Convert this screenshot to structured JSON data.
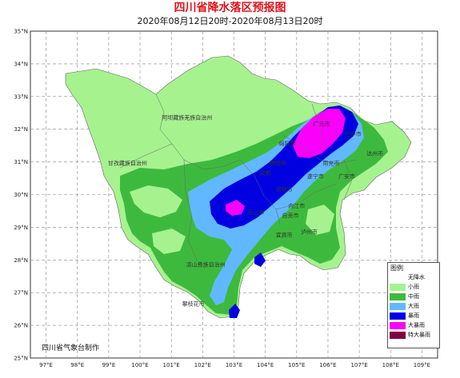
{
  "title": "四川省降水落区预报图",
  "subtitle": "2020年08月12日20时-2020年08月13日20时",
  "axes": {
    "lat_labels": [
      "35°N",
      "34°N",
      "33°N",
      "32°N",
      "31°N",
      "30°N",
      "29°N",
      "28°N",
      "27°N",
      "26°N",
      "25°N"
    ],
    "lon_labels": [
      "97°E",
      "98°E",
      "99°E",
      "100°E",
      "101°E",
      "102°E",
      "103°E",
      "104°E",
      "105°E",
      "106°E",
      "107°E",
      "108°E",
      "109°E"
    ]
  },
  "cities": [
    {
      "name": "阿坝藏族羌族自治州",
      "lon": 101.5,
      "lat": 32.3
    },
    {
      "name": "甘孜藏族自治州",
      "lon": 99.6,
      "lat": 30.9
    },
    {
      "name": "凉山彝族自治州",
      "lon": 102.1,
      "lat": 27.8
    },
    {
      "name": "攀枝花市",
      "lon": 101.7,
      "lat": 26.6
    },
    {
      "name": "广元市",
      "lon": 105.8,
      "lat": 32.1
    },
    {
      "name": "巴中市",
      "lon": 106.8,
      "lat": 31.8
    },
    {
      "name": "达州市",
      "lon": 107.5,
      "lat": 31.2
    },
    {
      "name": "绵阳市",
      "lon": 104.7,
      "lat": 31.5
    },
    {
      "name": "南充市",
      "lon": 106.1,
      "lat": 30.9
    },
    {
      "name": "德阳市",
      "lon": 104.4,
      "lat": 30.9
    },
    {
      "name": "成都",
      "lon": 104.0,
      "lat": 30.6
    },
    {
      "name": "遂宁市",
      "lon": 105.6,
      "lat": 30.5
    },
    {
      "name": "广安市",
      "lon": 106.6,
      "lat": 30.5
    },
    {
      "name": "资阳市",
      "lon": 104.6,
      "lat": 30.1
    },
    {
      "name": "内江市",
      "lon": 105.0,
      "lat": 29.6
    },
    {
      "name": "乐山市",
      "lon": 103.7,
      "lat": 29.4
    },
    {
      "name": "自贡市",
      "lon": 104.8,
      "lat": 29.3
    },
    {
      "name": "宜宾市",
      "lon": 104.6,
      "lat": 28.7
    },
    {
      "name": "泸州市",
      "lon": 105.4,
      "lat": 28.8
    }
  ],
  "legend": {
    "title": "图例",
    "items": [
      {
        "label": "无降水",
        "color": "#ffffff"
      },
      {
        "label": "小雨",
        "color": "#a6f28f"
      },
      {
        "label": "中雨",
        "color": "#3dba3d"
      },
      {
        "label": "大雨",
        "color": "#61b8ff"
      },
      {
        "label": "暴雨",
        "color": "#0000e1"
      },
      {
        "label": "大暴雨",
        "color": "#fa00fa"
      },
      {
        "label": "特大暴雨",
        "color": "#800040"
      }
    ]
  },
  "agency": "四川省气象台制作"
}
